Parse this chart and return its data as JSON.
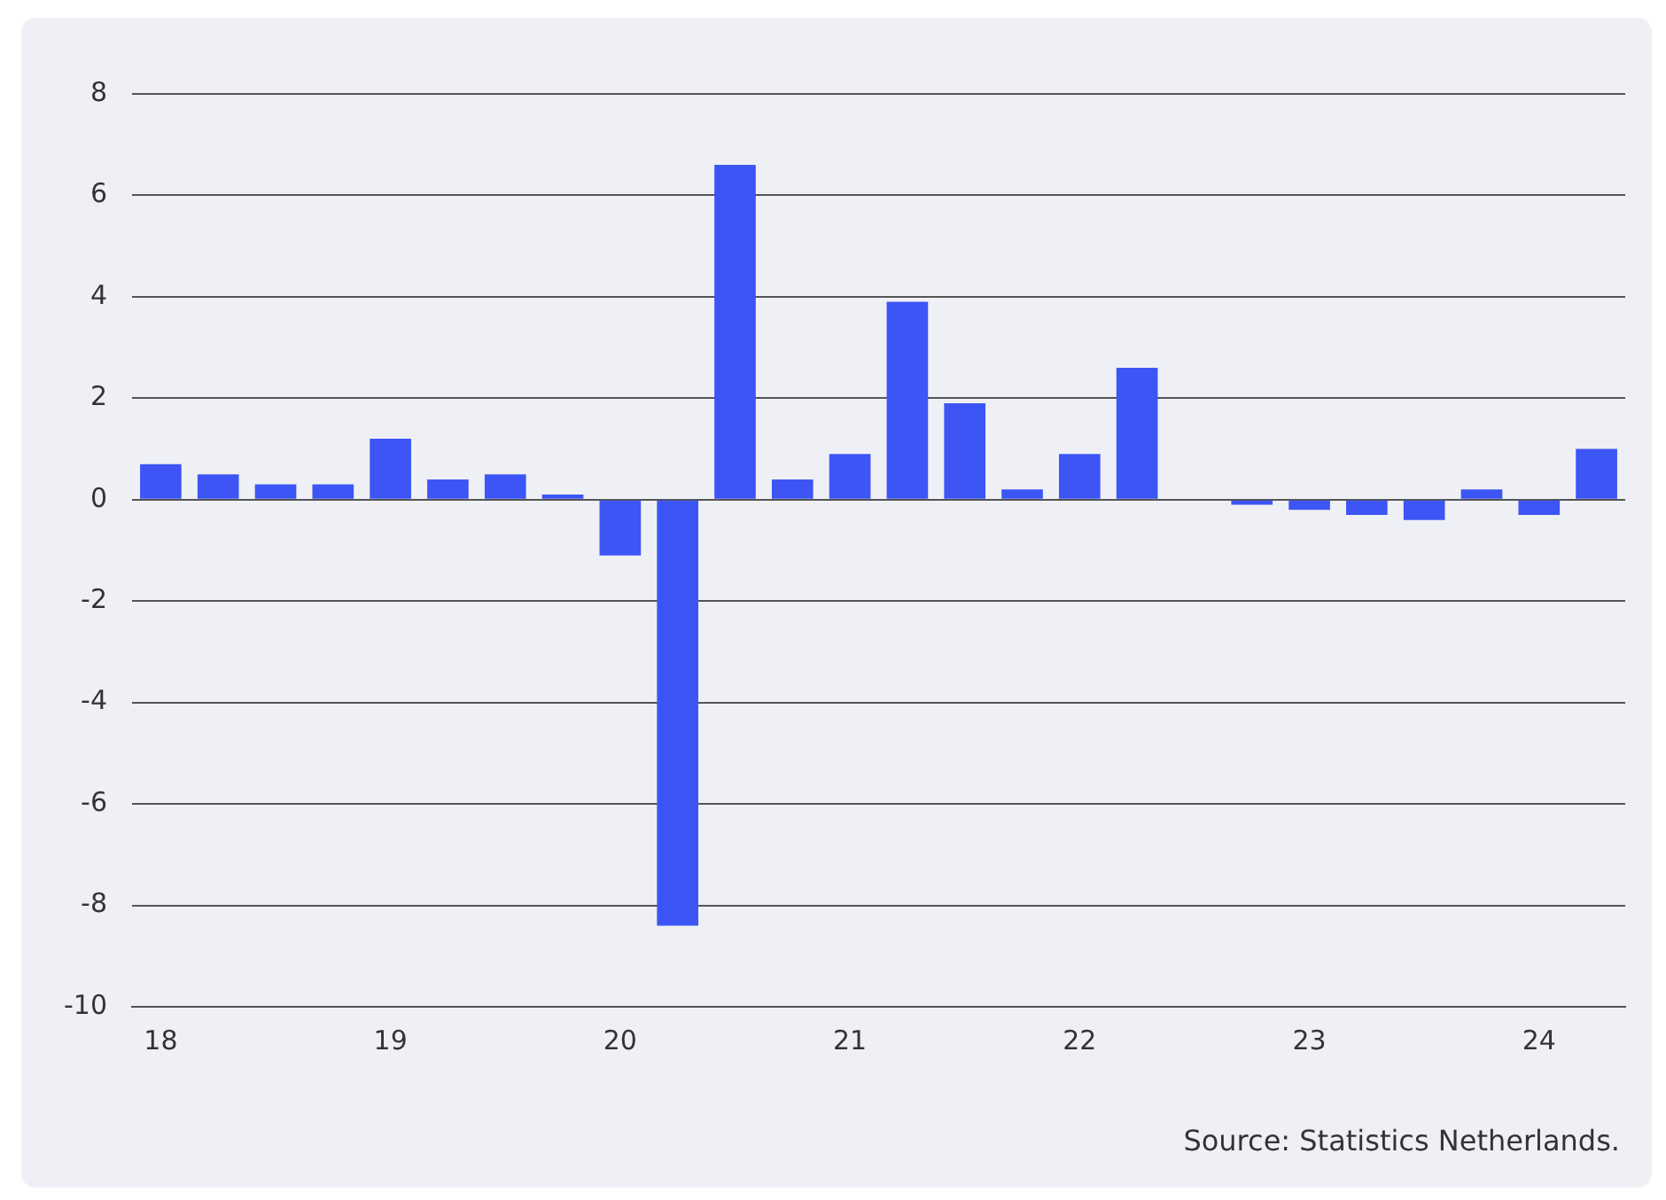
{
  "chart_data": {
    "type": "bar",
    "categories": [
      "18",
      null,
      null,
      null,
      "19",
      null,
      null,
      null,
      "20",
      null,
      null,
      null,
      "21",
      null,
      null,
      null,
      "22",
      null,
      null,
      null,
      "23",
      null,
      null,
      null,
      "24",
      null
    ],
    "values": [
      0.7,
      0.5,
      0.3,
      0.3,
      1.2,
      0.4,
      0.5,
      0.1,
      -1.1,
      -8.4,
      6.6,
      0.4,
      0.9,
      3.9,
      1.9,
      0.2,
      0.9,
      2.6,
      0.0,
      -0.1,
      -0.2,
      -0.3,
      -0.4,
      0.2,
      -0.3,
      1.0
    ],
    "color": "#3d55f5",
    "ylim": [
      -10,
      8
    ],
    "yticks": [
      -10,
      -8,
      -6,
      -4,
      -2,
      0,
      2,
      4,
      6,
      8
    ],
    "grid": "y",
    "legend": false,
    "annotations": [
      "Source: Statistics Netherlands."
    ]
  }
}
